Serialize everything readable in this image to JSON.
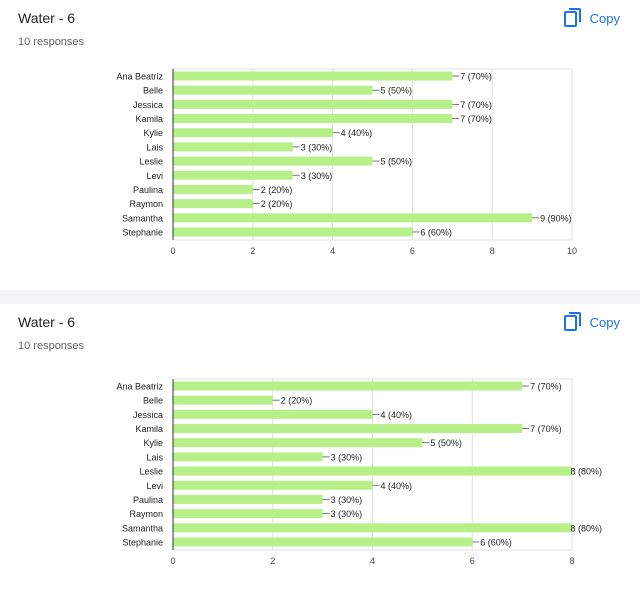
{
  "cards": [
    {
      "title": "Water - 6",
      "subtitle": "10 responses",
      "copy_label": "Copy"
    },
    {
      "title": "Water - 6",
      "subtitle": "10 responses",
      "copy_label": "Copy"
    }
  ],
  "colors": {
    "bar": "#b7f089",
    "bar_stroke": "#8fdb54",
    "accent": "#1a73e8",
    "grid": "#e0e0e0"
  },
  "chart_data": [
    {
      "type": "bar",
      "orientation": "horizontal",
      "categories": [
        "Ana Beatriz",
        "Belle",
        "Jessica",
        "Kamila",
        "Kylie",
        "Lais",
        "Leslie",
        "Levi",
        "Paulina",
        "Raymon",
        "Samantha",
        "Stephanie"
      ],
      "values": [
        7,
        5,
        7,
        7,
        4,
        3,
        5,
        3,
        2,
        2,
        9,
        6
      ],
      "data_labels": [
        "7 (70%)",
        "5 (50%)",
        "7 (70%)",
        "7 (70%)",
        "4 (40%)",
        "3 (30%)",
        "5 (50%)",
        "3 (30%)",
        "2 (20%)",
        "2 (20%)",
        "9 (90%)",
        "6 (60%)"
      ],
      "xlim": [
        0,
        10
      ],
      "xticks": [
        0,
        2,
        4,
        6,
        8,
        10
      ],
      "grid": true
    },
    {
      "type": "bar",
      "orientation": "horizontal",
      "categories": [
        "Ana Beatriz",
        "Belle",
        "Jessica",
        "Kamila",
        "Kylie",
        "Lais",
        "Leslie",
        "Levi",
        "Paulina",
        "Raymon",
        "Samantha",
        "Stephanie"
      ],
      "values": [
        7,
        2,
        4,
        7,
        5,
        3,
        8,
        4,
        3,
        3,
        8,
        6
      ],
      "data_labels": [
        "7 (70%)",
        "2 (20%)",
        "4 (40%)",
        "7 (70%)",
        "5 (50%)",
        "3 (30%)",
        "8 (80%)",
        "4 (40%)",
        "3 (30%)",
        "3 (30%)",
        "8 (80%)",
        "6 (60%)"
      ],
      "xlim": [
        0,
        8
      ],
      "xticks": [
        0,
        2,
        4,
        6,
        8
      ],
      "grid": true
    }
  ]
}
